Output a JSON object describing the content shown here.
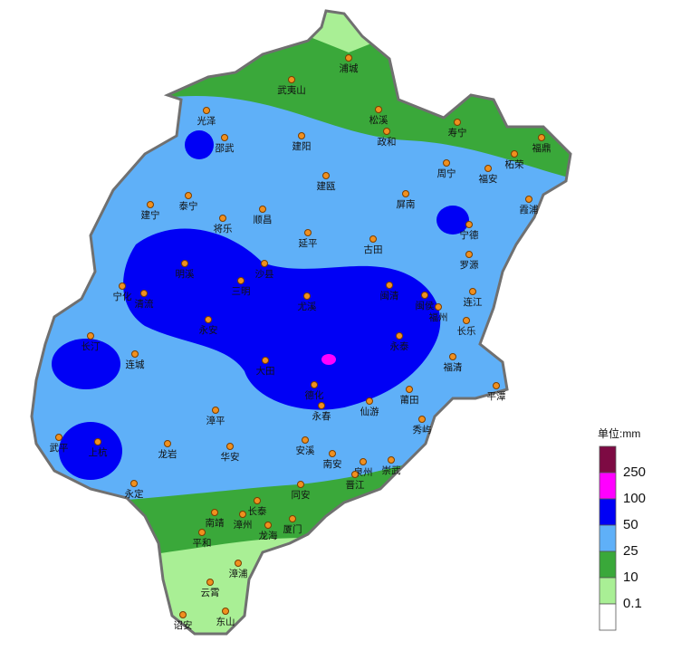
{
  "map": {
    "cities": [
      "浦城",
      "武夷山",
      "光泽",
      "松溪",
      "政和",
      "寿宁",
      "福鼎",
      "柘荣",
      "邵武",
      "建阳",
      "周宁",
      "福安",
      "建瓯",
      "泰宁",
      "建宁",
      "屏南",
      "霞浦",
      "将乐",
      "顺昌",
      "宁德",
      "延平",
      "古田",
      "罗源",
      "明溪",
      "沙县",
      "宁化",
      "清流",
      "三明",
      "闽清",
      "尤溪",
      "闽侯",
      "连江",
      "福州",
      "长乐",
      "永安",
      "长汀",
      "连城",
      "永泰",
      "大田",
      "福清",
      "德化",
      "平潭",
      "莆田",
      "永春",
      "仙游",
      "漳平",
      "秀屿",
      "武平",
      "上杭",
      "龙岩",
      "华安",
      "安溪",
      "南安",
      "泉州",
      "崇武",
      "晋江",
      "永定",
      "同安",
      "长泰",
      "南靖",
      "漳州",
      "厦门",
      "龙海",
      "平和",
      "漳浦",
      "云霄",
      "东山",
      "诏安"
    ],
    "legend": {
      "title": "单位:mm",
      "labels": [
        250,
        100,
        50,
        25,
        10,
        0.1
      ],
      "colors": [
        "#7d0a43",
        "#ff00ff",
        "#0000f5",
        "#5fb0f8",
        "#3aa83a",
        "#a9ef95",
        "#ffffff"
      ]
    }
  }
}
